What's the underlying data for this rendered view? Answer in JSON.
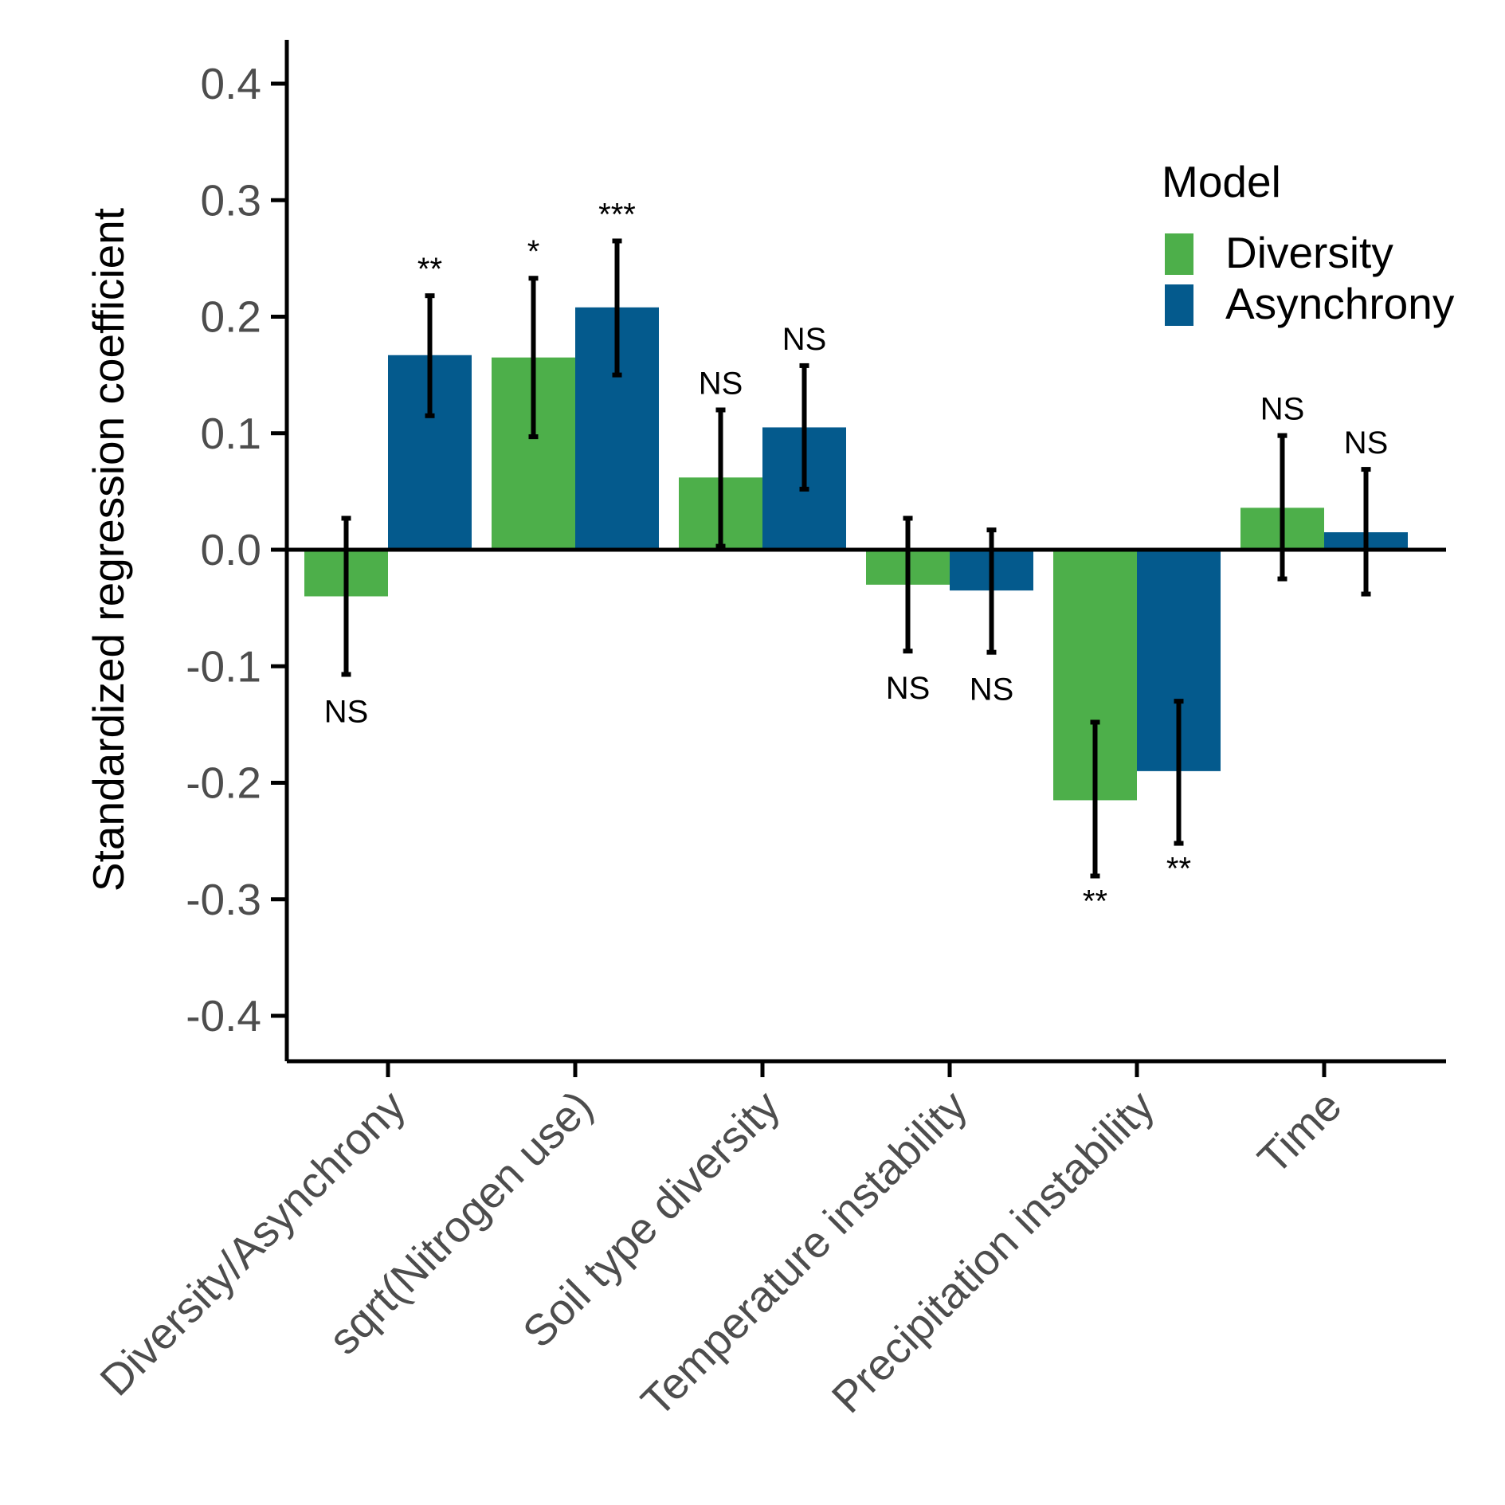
{
  "chart_data": {
    "type": "bar",
    "ylabel": "Standardized regression coefficient",
    "xlabel": "",
    "ylim": [
      -0.44,
      0.44
    ],
    "yticks": [
      -0.4,
      -0.3,
      -0.2,
      -0.1,
      0.0,
      0.1,
      0.2,
      0.3,
      0.4
    ],
    "ytick_labels": [
      "-0.4",
      "-0.3",
      "-0.2",
      "-0.1",
      "0.0",
      "0.1",
      "0.2",
      "0.3",
      "0.4"
    ],
    "categories": [
      "Diversity/Asynchrony",
      "sqrt(Nitrogen use)",
      "Soil type diversity",
      "Temperature instability",
      "Precipitation instability",
      "Time"
    ],
    "series": [
      {
        "name": "Diversity",
        "color": "#4daf4a",
        "values": [
          -0.04,
          0.165,
          0.062,
          -0.03,
          -0.215,
          0.036
        ],
        "err_low": [
          -0.107,
          0.097,
          0.003,
          -0.087,
          -0.28,
          -0.025
        ],
        "err_high": [
          0.027,
          0.233,
          0.12,
          0.027,
          -0.148,
          0.098
        ],
        "sig": [
          "NS",
          "*",
          "NS",
          "NS",
          "**",
          "NS"
        ]
      },
      {
        "name": "Asynchrony",
        "color": "#045a8d",
        "values": [
          0.167,
          0.208,
          0.105,
          -0.035,
          -0.19,
          0.015
        ],
        "err_low": [
          0.115,
          0.15,
          0.052,
          -0.088,
          -0.252,
          -0.038
        ],
        "err_high": [
          0.218,
          0.265,
          0.158,
          0.017,
          -0.13,
          0.069
        ],
        "sig": [
          "**",
          "***",
          "NS",
          "NS",
          "**",
          "NS"
        ]
      }
    ],
    "legend": {
      "title": "Model",
      "position": "top-right"
    }
  }
}
